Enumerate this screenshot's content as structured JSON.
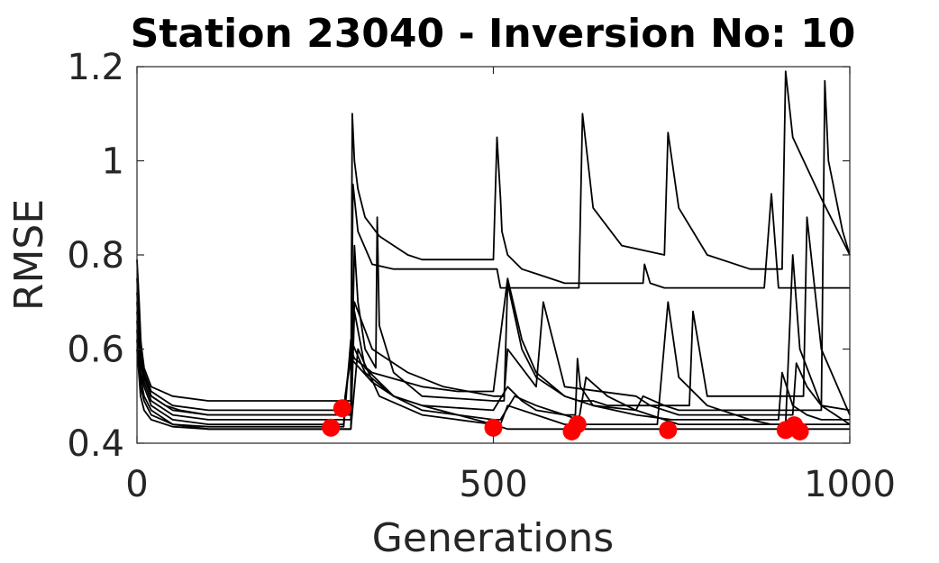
{
  "chart_data": {
    "type": "line",
    "title": "Station 23040 - Inversion No: 10",
    "xlabel": "Generations",
    "ylabel": "RMSE",
    "xlim": [
      0,
      1000
    ],
    "ylim": [
      0.4,
      1.2
    ],
    "xticks": [
      0,
      500,
      1000
    ],
    "xtick_labels": [
      "0",
      "500",
      "1000"
    ],
    "yticks": [
      0.4,
      0.6,
      0.8,
      1.0,
      1.2
    ],
    "ytick_labels": [
      "0.4",
      "0.6",
      "0.8",
      "1",
      "1.2"
    ],
    "grid": false,
    "line_color": "#000000",
    "marker_color": "#ff0000",
    "series": [
      {
        "x": [
          0,
          3,
          6,
          10,
          20,
          40,
          60,
          100,
          300,
          302,
          305,
          310,
          320,
          340,
          360,
          380,
          400,
          450,
          500,
          505,
          510,
          512,
          520,
          540,
          560,
          600,
          650,
          700,
          710,
          712,
          720,
          740,
          760,
          800,
          850,
          880,
          890,
          900,
          960,
          1000
        ],
        "y": [
          0.79,
          0.7,
          0.6,
          0.55,
          0.5,
          0.48,
          0.47,
          0.46,
          0.46,
          1.1,
          1.0,
          0.94,
          0.88,
          0.84,
          0.82,
          0.8,
          0.79,
          0.79,
          0.79,
          1.05,
          0.92,
          0.85,
          0.8,
          0.77,
          0.76,
          0.74,
          0.74,
          0.74,
          0.74,
          0.78,
          0.74,
          0.73,
          0.73,
          0.73,
          0.73,
          0.73,
          0.93,
          0.73,
          0.73,
          0.73
        ]
      },
      {
        "x": [
          0,
          5,
          10,
          20,
          50,
          100,
          300,
          303,
          310,
          330,
          360,
          400,
          500,
          505,
          510,
          550,
          600,
          620,
          625,
          640,
          680,
          740,
          745,
          760,
          800,
          860,
          905,
          910,
          920,
          960,
          1000
        ],
        "y": [
          0.75,
          0.62,
          0.56,
          0.52,
          0.5,
          0.49,
          0.49,
          0.95,
          0.85,
          0.78,
          0.77,
          0.77,
          0.77,
          0.77,
          0.73,
          0.73,
          0.73,
          0.73,
          1.1,
          0.9,
          0.82,
          0.8,
          1.06,
          0.9,
          0.8,
          0.77,
          0.77,
          1.19,
          1.05,
          0.92,
          0.8
        ]
      },
      {
        "x": [
          0,
          5,
          10,
          20,
          50,
          100,
          290,
          300,
          305,
          330,
          400,
          450,
          500,
          520,
          540,
          560,
          600,
          640,
          700,
          710,
          740,
          760,
          800,
          860,
          900,
          960,
          965,
          970,
          990,
          1000
        ],
        "y": [
          0.72,
          0.6,
          0.55,
          0.51,
          0.48,
          0.47,
          0.47,
          0.6,
          0.58,
          0.55,
          0.52,
          0.51,
          0.51,
          0.75,
          0.62,
          0.55,
          0.5,
          0.48,
          0.47,
          0.5,
          0.48,
          0.47,
          0.47,
          0.47,
          0.47,
          0.47,
          1.17,
          1.0,
          0.85,
          0.8
        ]
      },
      {
        "x": [
          0,
          5,
          10,
          20,
          50,
          100,
          290,
          300,
          305,
          310,
          320,
          335,
          337,
          340,
          360,
          400,
          500,
          515,
          520,
          540,
          560,
          600,
          620,
          640,
          660,
          700,
          750,
          760,
          775,
          780,
          800,
          900,
          935,
          940,
          960,
          1000
        ],
        "y": [
          0.7,
          0.58,
          0.54,
          0.5,
          0.47,
          0.46,
          0.46,
          0.46,
          0.82,
          0.7,
          0.6,
          0.56,
          0.88,
          0.65,
          0.55,
          0.5,
          0.49,
          0.49,
          0.74,
          0.6,
          0.54,
          0.5,
          0.49,
          0.49,
          0.48,
          0.48,
          0.48,
          0.48,
          0.48,
          0.68,
          0.5,
          0.5,
          0.5,
          0.88,
          0.6,
          0.46
        ]
      },
      {
        "x": [
          0,
          5,
          10,
          20,
          50,
          100,
          290,
          300,
          305,
          330,
          380,
          430,
          500,
          515,
          520,
          560,
          570,
          600,
          700,
          720,
          760,
          800,
          860,
          900,
          920,
          925,
          940,
          960,
          1000
        ],
        "y": [
          0.68,
          0.57,
          0.53,
          0.49,
          0.46,
          0.45,
          0.45,
          0.45,
          0.7,
          0.6,
          0.55,
          0.52,
          0.5,
          0.5,
          0.6,
          0.52,
          0.7,
          0.52,
          0.5,
          0.48,
          0.46,
          0.46,
          0.46,
          0.46,
          0.46,
          0.57,
          0.52,
          0.48,
          0.47
        ]
      },
      {
        "x": [
          0,
          5,
          10,
          20,
          50,
          100,
          280,
          290,
          292,
          300,
          330,
          360,
          400,
          500,
          520,
          540,
          560,
          600,
          615,
          618,
          622,
          640,
          700,
          750,
          760,
          800,
          860,
          880,
          900,
          905,
          920,
          940,
          960,
          1000
        ],
        "y": [
          0.66,
          0.55,
          0.52,
          0.48,
          0.45,
          0.44,
          0.44,
          0.44,
          0.5,
          0.58,
          0.53,
          0.5,
          0.48,
          0.47,
          0.52,
          0.49,
          0.47,
          0.46,
          0.46,
          0.58,
          0.52,
          0.48,
          0.46,
          0.45,
          0.45,
          0.45,
          0.45,
          0.45,
          0.45,
          0.55,
          0.48,
          0.46,
          0.45,
          0.45
        ]
      },
      {
        "x": [
          0,
          5,
          10,
          20,
          50,
          100,
          290,
          300,
          320,
          360,
          400,
          450,
          500,
          510,
          530,
          560,
          600,
          620,
          630,
          660,
          700,
          720,
          740,
          760,
          800,
          850,
          900,
          940,
          960,
          1000
        ],
        "y": [
          0.64,
          0.54,
          0.5,
          0.47,
          0.44,
          0.435,
          0.435,
          0.62,
          0.55,
          0.5,
          0.48,
          0.46,
          0.45,
          0.45,
          0.5,
          0.48,
          0.46,
          0.45,
          0.54,
          0.5,
          0.47,
          0.46,
          0.45,
          0.44,
          0.44,
          0.44,
          0.44,
          0.44,
          0.44,
          0.44
        ]
      },
      {
        "x": [
          0,
          5,
          10,
          20,
          50,
          100,
          300,
          305,
          320,
          360,
          400,
          450,
          500,
          510,
          520,
          560,
          600,
          620,
          640,
          700,
          720,
          730,
          745,
          760,
          800,
          860,
          890,
          900,
          910,
          920,
          930,
          960,
          1000
        ],
        "y": [
          0.62,
          0.52,
          0.49,
          0.46,
          0.44,
          0.43,
          0.43,
          0.68,
          0.56,
          0.5,
          0.47,
          0.46,
          0.44,
          0.44,
          0.48,
          0.46,
          0.44,
          0.44,
          0.44,
          0.44,
          0.44,
          0.44,
          0.7,
          0.54,
          0.48,
          0.45,
          0.44,
          0.44,
          0.44,
          0.8,
          0.6,
          0.48,
          0.44
        ]
      },
      {
        "x": [
          0,
          5,
          10,
          20,
          50,
          100,
          300,
          310,
          340,
          400,
          450,
          500,
          520,
          560,
          600,
          620,
          650,
          700,
          750,
          800,
          860,
          900,
          920,
          940,
          960,
          1000
        ],
        "y": [
          0.6,
          0.5,
          0.47,
          0.45,
          0.435,
          0.43,
          0.43,
          0.6,
          0.5,
          0.46,
          0.45,
          0.44,
          0.43,
          0.43,
          0.43,
          0.43,
          0.43,
          0.43,
          0.43,
          0.43,
          0.43,
          0.43,
          0.43,
          0.43,
          0.43,
          0.43
        ]
      }
    ],
    "markers": [
      {
        "x": 272,
        "y": 0.433
      },
      {
        "x": 288,
        "y": 0.474
      },
      {
        "x": 500,
        "y": 0.433
      },
      {
        "x": 610,
        "y": 0.425
      },
      {
        "x": 618,
        "y": 0.44
      },
      {
        "x": 745,
        "y": 0.428
      },
      {
        "x": 910,
        "y": 0.428
      },
      {
        "x": 922,
        "y": 0.438
      },
      {
        "x": 930,
        "y": 0.425
      }
    ]
  }
}
